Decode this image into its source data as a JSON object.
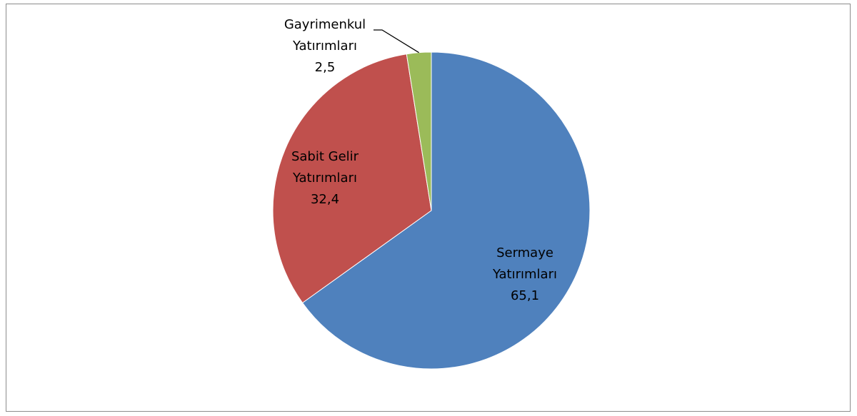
{
  "chart_data": {
    "type": "pie",
    "categories": [
      "Sermaye Yatırımları",
      "Sabit Gelir Yatırımları",
      "Gayrimenkul Yatırımları"
    ],
    "values": [
      65.1,
      32.4,
      2.5
    ],
    "value_labels": [
      "65,1",
      "32,4",
      "2,5"
    ],
    "colors": [
      "#4f81bd",
      "#c0504d",
      "#9bbb59"
    ]
  }
}
